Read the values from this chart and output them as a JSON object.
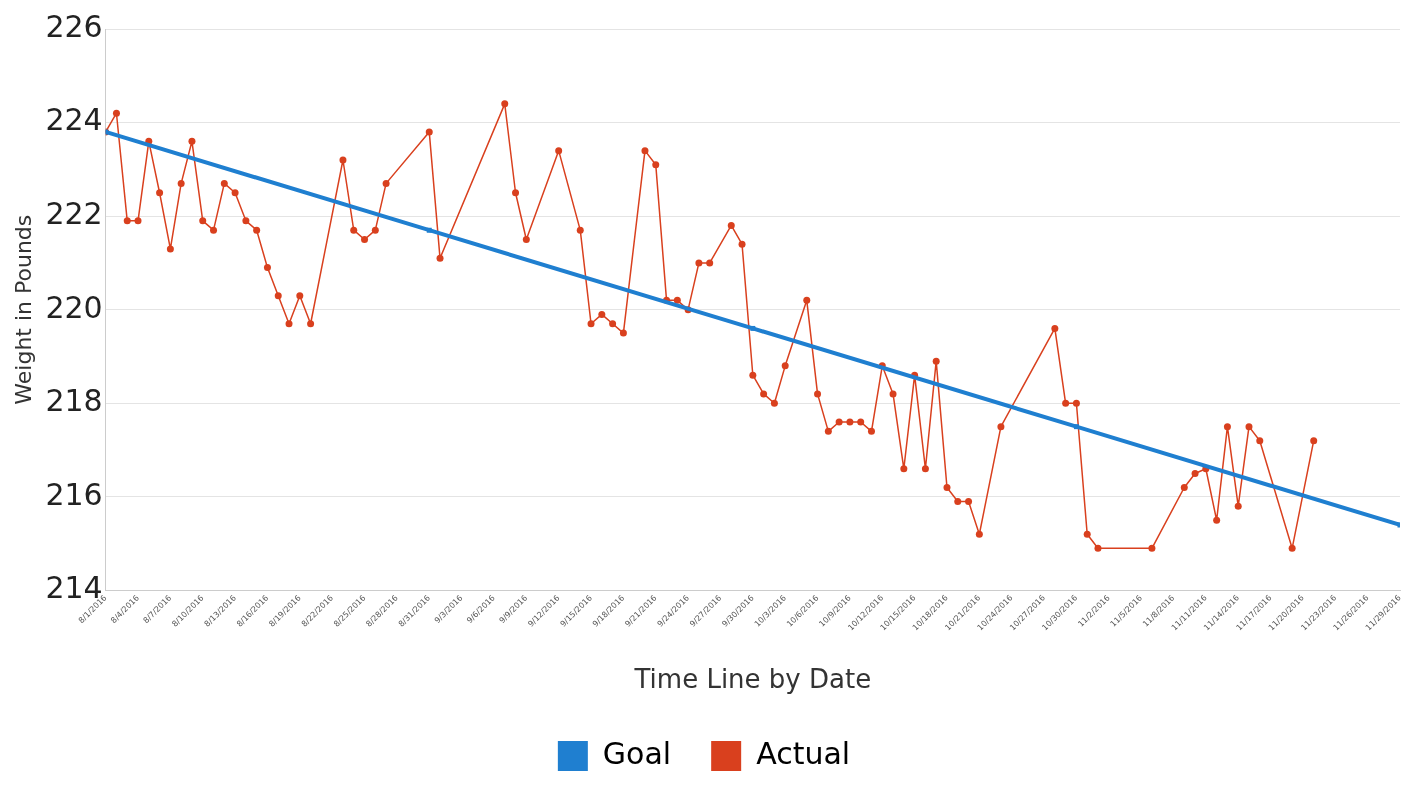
{
  "chart_data": {
    "type": "line",
    "xlabel": "Time Line by Date",
    "ylabel": "Weight in Pounds",
    "xlim": [
      "2016-08-01",
      "2016-11-29"
    ],
    "xticks": [
      {
        "value": "2016-08-01",
        "label": "8/1/2016"
      },
      {
        "value": "2016-08-04",
        "label": "8/4/2016"
      },
      {
        "value": "2016-08-07",
        "label": "8/7/2016"
      },
      {
        "value": "2016-08-10",
        "label": "8/10/2016"
      },
      {
        "value": "2016-08-13",
        "label": "8/13/2016"
      },
      {
        "value": "2016-08-16",
        "label": "8/16/2016"
      },
      {
        "value": "2016-08-19",
        "label": "8/19/2016"
      },
      {
        "value": "2016-08-22",
        "label": "8/22/2016"
      },
      {
        "value": "2016-08-25",
        "label": "8/25/2016"
      },
      {
        "value": "2016-08-28",
        "label": "8/28/2016"
      },
      {
        "value": "2016-08-31",
        "label": "8/31/2016"
      },
      {
        "value": "2016-09-03",
        "label": "9/3/2016"
      },
      {
        "value": "2016-09-06",
        "label": "9/6/2016"
      },
      {
        "value": "2016-09-09",
        "label": "9/9/2016"
      },
      {
        "value": "2016-09-12",
        "label": "9/12/2016"
      },
      {
        "value": "2016-09-15",
        "label": "9/15/2016"
      },
      {
        "value": "2016-09-18",
        "label": "9/18/2016"
      },
      {
        "value": "2016-09-21",
        "label": "9/21/2016"
      },
      {
        "value": "2016-09-24",
        "label": "9/24/2016"
      },
      {
        "value": "2016-09-27",
        "label": "9/27/2016"
      },
      {
        "value": "2016-09-30",
        "label": "9/30/2016"
      },
      {
        "value": "2016-10-03",
        "label": "10/3/2016"
      },
      {
        "value": "2016-10-06",
        "label": "10/6/2016"
      },
      {
        "value": "2016-10-09",
        "label": "10/9/2016"
      },
      {
        "value": "2016-10-12",
        "label": "10/12/2016"
      },
      {
        "value": "2016-10-15",
        "label": "10/15/2016"
      },
      {
        "value": "2016-10-18",
        "label": "10/18/2016"
      },
      {
        "value": "2016-10-21",
        "label": "10/21/2016"
      },
      {
        "value": "2016-10-24",
        "label": "10/24/2016"
      },
      {
        "value": "2016-10-27",
        "label": "10/27/2016"
      },
      {
        "value": "2016-10-30",
        "label": "10/30/2016"
      },
      {
        "value": "2016-11-02",
        "label": "11/2/2016"
      },
      {
        "value": "2016-11-05",
        "label": "11/5/2016"
      },
      {
        "value": "2016-11-08",
        "label": "11/8/2016"
      },
      {
        "value": "2016-11-11",
        "label": "11/11/2016"
      },
      {
        "value": "2016-11-14",
        "label": "11/14/2016"
      },
      {
        "value": "2016-11-17",
        "label": "11/17/2016"
      },
      {
        "value": "2016-11-20",
        "label": "11/20/2016"
      },
      {
        "value": "2016-11-23",
        "label": "11/23/2016"
      },
      {
        "value": "2016-11-26",
        "label": "11/26/2016"
      },
      {
        "value": "2016-11-29",
        "label": "11/29/2016"
      }
    ],
    "ylim": [
      214,
      226
    ],
    "yticks": [
      214,
      216,
      218,
      220,
      222,
      224,
      226
    ],
    "grid": "y",
    "legend": "bottom",
    "line_style": "solid",
    "series": [
      {
        "name": "Goal",
        "color": "#1f7fd0",
        "marker": "square",
        "x": [
          "2016-08-01",
          "2016-08-31",
          "2016-09-30",
          "2016-10-30",
          "2016-11-29"
        ],
        "values": [
          223.8,
          221.7,
          219.6,
          217.5,
          215.4
        ]
      },
      {
        "name": "Actual",
        "color": "#d9401e",
        "marker": "circle",
        "x": [
          "2016-08-01",
          "2016-08-02",
          "2016-08-03",
          "2016-08-04",
          "2016-08-05",
          "2016-08-06",
          "2016-08-07",
          "2016-08-08",
          "2016-08-09",
          "2016-08-10",
          "2016-08-11",
          "2016-08-12",
          "2016-08-13",
          "2016-08-14",
          "2016-08-15",
          "2016-08-16",
          "2016-08-17",
          "2016-08-18",
          "2016-08-19",
          "2016-08-20",
          "2016-08-23",
          "2016-08-24",
          "2016-08-25",
          "2016-08-26",
          "2016-08-27",
          "2016-08-31",
          "2016-09-01",
          "2016-09-07",
          "2016-09-08",
          "2016-09-09",
          "2016-09-12",
          "2016-09-14",
          "2016-09-15",
          "2016-09-16",
          "2016-09-17",
          "2016-09-18",
          "2016-09-20",
          "2016-09-21",
          "2016-09-22",
          "2016-09-23",
          "2016-09-24",
          "2016-09-25",
          "2016-09-26",
          "2016-09-28",
          "2016-09-29",
          "2016-09-30",
          "2016-10-01",
          "2016-10-02",
          "2016-10-03",
          "2016-10-05",
          "2016-10-06",
          "2016-10-07",
          "2016-10-08",
          "2016-10-09",
          "2016-10-10",
          "2016-10-11",
          "2016-10-12",
          "2016-10-13",
          "2016-10-14",
          "2016-10-15",
          "2016-10-16",
          "2016-10-17",
          "2016-10-18",
          "2016-10-19",
          "2016-10-20",
          "2016-10-21",
          "2016-10-23",
          "2016-10-28",
          "2016-10-29",
          "2016-10-30",
          "2016-10-31",
          "2016-11-01",
          "2016-11-06",
          "2016-11-09",
          "2016-11-10",
          "2016-11-11",
          "2016-11-12",
          "2016-11-13",
          "2016-11-14",
          "2016-11-15",
          "2016-11-16",
          "2016-11-19",
          "2016-11-21"
        ],
        "values": [
          223.8,
          224.2,
          221.9,
          221.9,
          223.6,
          222.5,
          221.3,
          222.7,
          223.6,
          221.9,
          221.7,
          222.7,
          222.5,
          221.9,
          221.7,
          220.9,
          220.3,
          219.7,
          220.3,
          219.7,
          223.2,
          221.7,
          221.5,
          221.7,
          222.7,
          223.8,
          221.1,
          224.4,
          222.5,
          221.5,
          223.4,
          221.7,
          219.7,
          219.9,
          219.7,
          219.5,
          223.4,
          223.1,
          220.2,
          220.2,
          220.0,
          221.0,
          221.0,
          221.8,
          221.4,
          218.6,
          218.2,
          218.0,
          218.8,
          220.2,
          218.2,
          217.4,
          217.6,
          217.6,
          217.6,
          217.4,
          218.8,
          218.2,
          216.6,
          218.6,
          216.6,
          218.9,
          216.2,
          215.9,
          215.9,
          215.2,
          217.5,
          219.6,
          218.0,
          218.0,
          215.2,
          214.9,
          214.9,
          216.2,
          216.5,
          216.6,
          215.5,
          217.5,
          215.8,
          217.5,
          217.2,
          214.9,
          217.2
        ]
      }
    ]
  }
}
